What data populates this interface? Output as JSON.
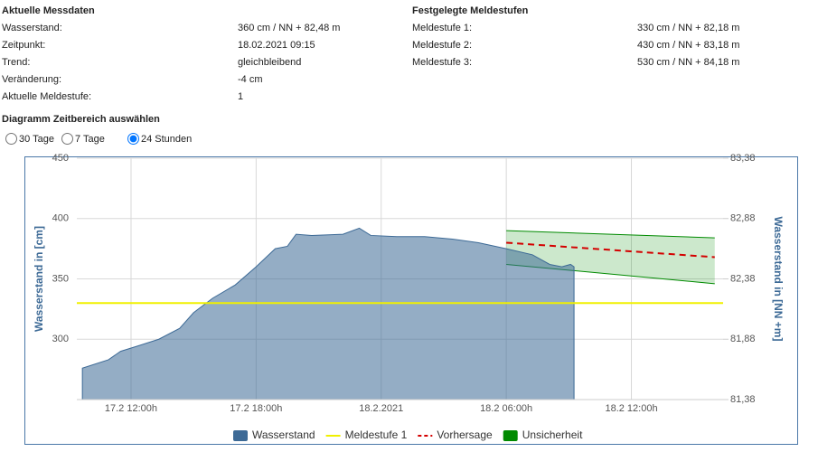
{
  "info": {
    "title": "Aktuelle Messdaten",
    "rows": [
      [
        "Wasserstand:",
        "360 cm / NN + 82,48 m"
      ],
      [
        "Zeitpunkt:",
        "18.02.2021 09:15"
      ],
      [
        "Trend:",
        "gleichbleibend"
      ],
      [
        "Veränderung:",
        "-4 cm"
      ],
      [
        "Aktuelle Meldestufe:",
        "1"
      ]
    ],
    "levels_title": "Festgelegte Meldestufen",
    "levels": [
      [
        "Meldestufe 1:",
        "330 cm / NN + 82,18 m"
      ],
      [
        "Meldestufe 2:",
        "430 cm / NN + 83,18 m"
      ],
      [
        "Meldestufe 3:",
        "530 cm / NN + 84,18 m"
      ]
    ]
  },
  "range_select": {
    "title": "Diagramm Zeitbereich auswählen",
    "options": [
      "30 Tage",
      "7 Tage",
      "24 Stunden"
    ],
    "selected": 2
  },
  "chart_data": {
    "type": "area",
    "ylabel": "Wasserstand in [cm]",
    "y2label": "Wasserstand in [NN +m]",
    "xlim": [
      "2021-02-17T09:24",
      "2021-02-18T16:24"
    ],
    "xticks": [
      {
        "value": "2021-02-17T12:00",
        "label": "17.2 12:00h"
      },
      {
        "value": "2021-02-17T18:00",
        "label": "17.2 18:00h"
      },
      {
        "value": "2021-02-18T00:00",
        "label": "18.2.2021"
      },
      {
        "value": "2021-02-18T06:00",
        "label": "18.2 06:00h"
      },
      {
        "value": "2021-02-18T12:00",
        "label": "18.2 12:00h"
      }
    ],
    "ylim": [
      250,
      450
    ],
    "yticks": [
      300,
      350,
      400,
      450
    ],
    "y2lim": [
      81.38,
      83.38
    ],
    "y2ticks": [
      {
        "value": 81.38,
        "label": "81,38"
      },
      {
        "value": 81.88,
        "label": "81,88"
      },
      {
        "value": 82.38,
        "label": "82,38"
      },
      {
        "value": 82.88,
        "label": "82,88"
      },
      {
        "value": 83.38,
        "label": "83,38"
      }
    ],
    "grid": true,
    "series": [
      {
        "name": "Wasserstand",
        "kind": "area",
        "color": "#3d6a96",
        "x": [
          "2021-02-17T09:40",
          "2021-02-17T10:55",
          "2021-02-17T11:30",
          "2021-02-17T12:15",
          "2021-02-17T13:20",
          "2021-02-17T14:20",
          "2021-02-17T15:00",
          "2021-02-17T15:55",
          "2021-02-17T17:00",
          "2021-02-17T18:00",
          "2021-02-17T18:55",
          "2021-02-17T19:30",
          "2021-02-17T19:55",
          "2021-02-17T20:40",
          "2021-02-17T22:10",
          "2021-02-17T22:57",
          "2021-02-17T23:30",
          "2021-02-18T00:45",
          "2021-02-18T02:05",
          "2021-02-18T03:25",
          "2021-02-18T04:40",
          "2021-02-18T06:00",
          "2021-02-18T07:15",
          "2021-02-18T08:05",
          "2021-02-18T08:40",
          "2021-02-18T09:05",
          "2021-02-18T09:15"
        ],
        "values": [
          276,
          283,
          290,
          294,
          300,
          309,
          322,
          334,
          345,
          360,
          375,
          377,
          387,
          386,
          387,
          392,
          386,
          385,
          385,
          383,
          380,
          375,
          370,
          362,
          360,
          362,
          360
        ]
      },
      {
        "name": "Meldestufe 1",
        "kind": "hline",
        "color": "#f0f000",
        "value": 330
      },
      {
        "name": "Vorhersage",
        "kind": "dashed",
        "color": "#d40000",
        "x": [
          "2021-02-18T06:00",
          "2021-02-18T16:00"
        ],
        "values": [
          380,
          368
        ]
      },
      {
        "name": "Unsicherheit",
        "kind": "band",
        "color": "#008a00",
        "x": [
          "2021-02-18T06:00",
          "2021-02-18T16:00"
        ],
        "low": [
          362,
          346
        ],
        "high": [
          390,
          384
        ]
      }
    ]
  }
}
